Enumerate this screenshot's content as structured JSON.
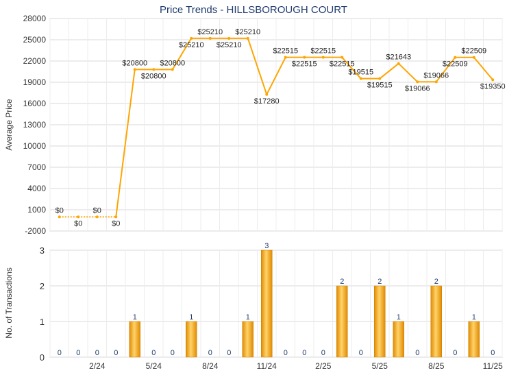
{
  "chart_data": [
    {
      "type": "line",
      "title": "Price Trends - HILLSBOROUGH COURT",
      "ylabel": "Average Price",
      "yticks": [
        -2000,
        1000,
        4000,
        7000,
        10000,
        13000,
        16000,
        19000,
        22000,
        25000,
        28000
      ],
      "ylim": [
        -2000,
        28000
      ],
      "series": [
        {
          "values": [
            0,
            0,
            0,
            0,
            20800,
            20800,
            20800,
            25210,
            25210,
            25210,
            25210,
            17280,
            22515,
            22515,
            22515,
            22515,
            19515,
            19515,
            21643,
            19066,
            19066,
            22509,
            22509,
            19350
          ],
          "labels": [
            "$0",
            "$0",
            "$0",
            "$0",
            "$20800",
            "$20800",
            "$20800",
            "$25210",
            "$25210",
            "$25210",
            "$25210",
            "$17280",
            "$22515",
            "$22515",
            "$22515",
            "$22515",
            "$19515",
            "$19515",
            "$21643",
            "$19066",
            "$19066",
            "$22509",
            "$22509",
            "$19350"
          ]
        }
      ],
      "grid": true,
      "color": "#ffa500"
    },
    {
      "type": "bar",
      "ylabel": "No. of Transactions",
      "categories": [
        "",
        "",
        "2/24",
        "",
        "",
        "5/24",
        "",
        "",
        "8/24",
        "",
        "",
        "11/24",
        "",
        "",
        "2/25",
        "",
        "",
        "5/25",
        "",
        "",
        "8/25",
        "",
        "",
        "11/25"
      ],
      "values": [
        0,
        0,
        0,
        0,
        1,
        0,
        0,
        1,
        0,
        0,
        1,
        3,
        0,
        0,
        0,
        2,
        0,
        2,
        1,
        0,
        2,
        0,
        1,
        0
      ],
      "value_labels": [
        "0",
        "0",
        "0",
        "0",
        "1",
        "0",
        "0",
        "1",
        "0",
        "0",
        "1",
        "3",
        "0",
        "0",
        "0",
        "2",
        "0",
        "2",
        "1",
        "0",
        "2",
        "0",
        "1",
        "0"
      ],
      "yticks": [
        0,
        1,
        2,
        3
      ],
      "ylim": [
        0,
        3
      ],
      "grid": true,
      "color": "#f0a020"
    }
  ]
}
